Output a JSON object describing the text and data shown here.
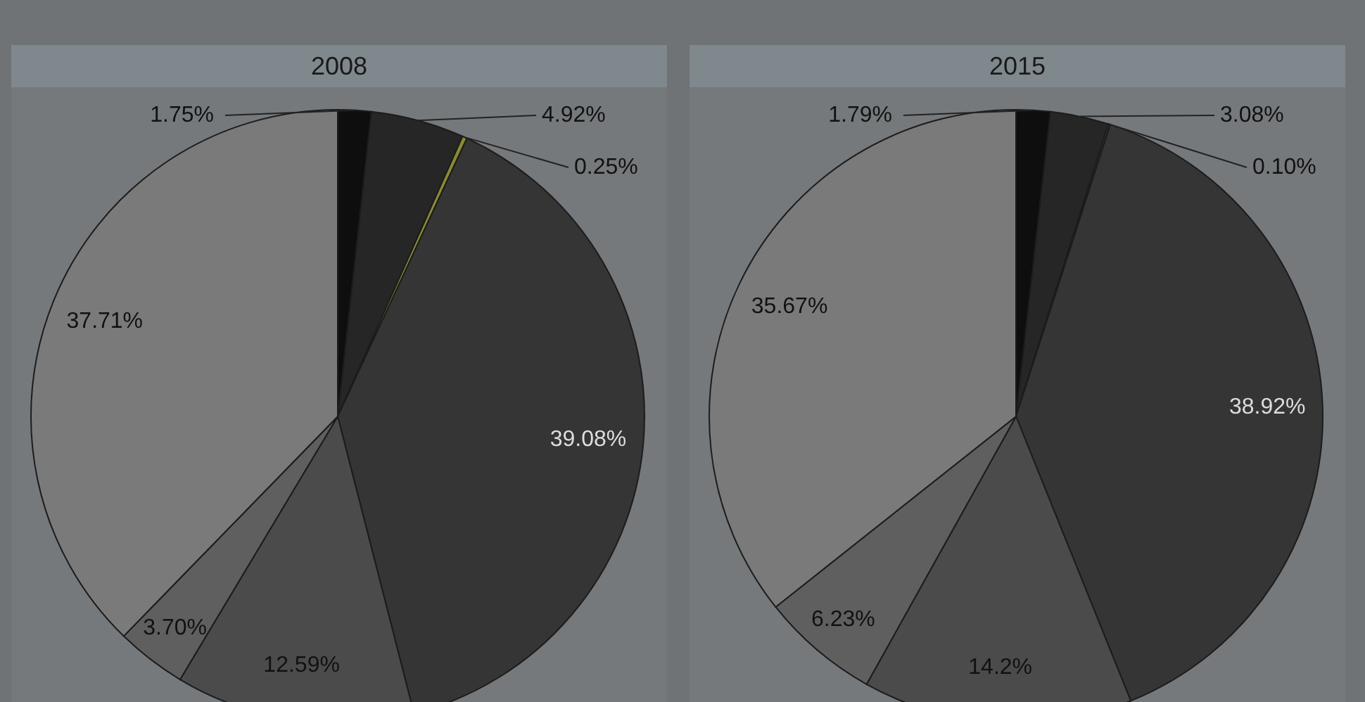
{
  "chart_data": [
    {
      "type": "pie",
      "title": "2008",
      "categories": [
        null,
        null,
        null,
        null,
        null,
        null,
        null
      ],
      "values": [
        1.75,
        4.92,
        0.25,
        39.08,
        12.59,
        3.7,
        37.71
      ],
      "colors": [
        "#0e0e0e",
        "#262626",
        "#8a8a2e",
        "#353535",
        "#4b4b4b",
        "#5f5f5f",
        "#7a7a7a"
      ],
      "value_labels": [
        "1.75%",
        "4.92%",
        "0.25%",
        "39.08%",
        "12.59%",
        "3.70%",
        "37.71%"
      ]
    },
    {
      "type": "pie",
      "title": "2015",
      "categories": [
        null,
        null,
        null,
        null,
        null,
        null,
        null
      ],
      "values": [
        1.79,
        3.08,
        0.1,
        38.92,
        14.2,
        6.23,
        35.67
      ],
      "colors": [
        "#0e0e0e",
        "#262626",
        "#404040",
        "#353535",
        "#4b4b4b",
        "#5f5f5f",
        "#7a7a7a"
      ],
      "value_labels": [
        "1.79%",
        "3.08%",
        "0.10%",
        "38.92%",
        "14.2%",
        "6.23%",
        "35.67%"
      ]
    }
  ]
}
